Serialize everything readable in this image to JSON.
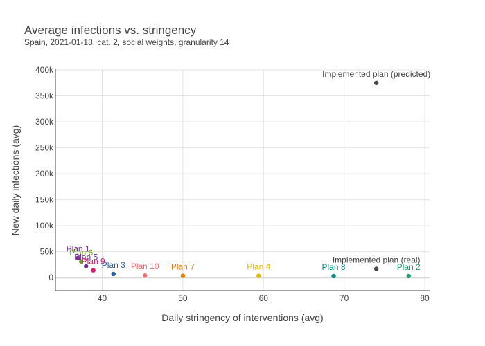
{
  "chart_data": {
    "type": "scatter",
    "title": "Average infections vs. stringency",
    "subtitle": "Spain, 2021-01-18, cat. 2, social weights, granularity 14",
    "xlabel": "Daily stringency of interventions (avg)",
    "ylabel": "New daily infections (avg)",
    "xlim": [
      34.2,
      80.6
    ],
    "ylim": [
      -25000,
      400000
    ],
    "xticks": [
      40,
      50,
      60,
      70,
      80
    ],
    "xtick_labels": [
      "40",
      "50",
      "60",
      "70",
      "80"
    ],
    "yticks": [
      0,
      50000,
      100000,
      150000,
      200000,
      250000,
      300000,
      350000,
      400000
    ],
    "ytick_labels": [
      "0",
      "50k",
      "100k",
      "150k",
      "200k",
      "250k",
      "300k",
      "350k",
      "400k"
    ],
    "grid": true,
    "legend": "none",
    "points": [
      {
        "label": "Implemented plan (predicted)",
        "x": 74.0,
        "y": 375000,
        "color": "#444444"
      },
      {
        "label": "Implemented plan (real)",
        "x": 74.0,
        "y": 17000,
        "color": "#444444"
      },
      {
        "label": "Plan 1",
        "x": 37.0,
        "y": 38000,
        "color": "#7b2c91"
      },
      {
        "label": "Plan 6",
        "x": 37.4,
        "y": 31000,
        "color": "#66a61e"
      },
      {
        "label": "Plan 5",
        "x": 38.0,
        "y": 22000,
        "color": "#6b2f8f"
      },
      {
        "label": "Plan 9",
        "x": 38.9,
        "y": 14000,
        "color": "#d11b72"
      },
      {
        "label": "Plan 3",
        "x": 41.4,
        "y": 7000,
        "color": "#2c5ea8"
      },
      {
        "label": "Plan 10",
        "x": 45.3,
        "y": 4000,
        "color": "#f06b6b"
      },
      {
        "label": "Plan 7",
        "x": 50.0,
        "y": 3500,
        "color": "#e67e00"
      },
      {
        "label": "Plan 4",
        "x": 59.4,
        "y": 3500,
        "color": "#e6b800"
      },
      {
        "label": "Plan 8",
        "x": 68.7,
        "y": 3000,
        "color": "#008b8b"
      },
      {
        "label": "Plan 2",
        "x": 78.0,
        "y": 3000,
        "color": "#1f9e77"
      }
    ]
  }
}
